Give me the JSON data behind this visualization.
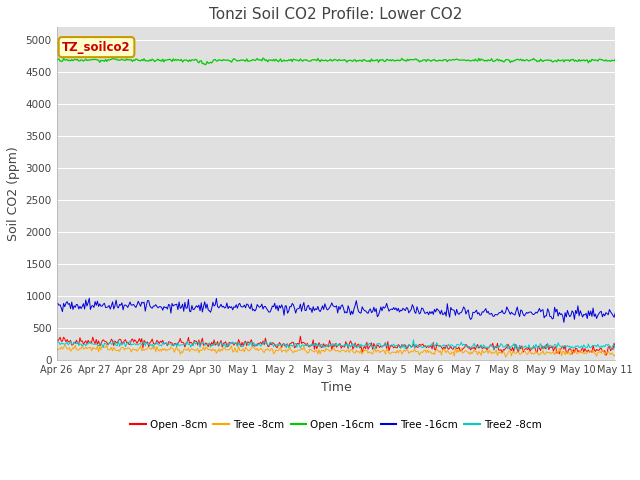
{
  "title": "Tonzi Soil CO2 Profile: Lower CO2",
  "xlabel": "Time",
  "ylabel": "Soil CO2 (ppm)",
  "annotation_text": "TZ_soilco2",
  "annotation_color": "#cc0000",
  "annotation_bg": "#ffffcc",
  "annotation_border": "#cc9900",
  "ylim": [
    0,
    5200
  ],
  "yticks": [
    0,
    500,
    1000,
    1500,
    2000,
    2500,
    3000,
    3500,
    4000,
    4500,
    5000
  ],
  "bg_color": "#e0e0e0",
  "fig_bg_color": "#ffffff",
  "n_points": 480,
  "x_start": 0,
  "x_end": 15,
  "xtick_labels": [
    "Apr 26",
    "Apr 27",
    "Apr 28",
    "Apr 29",
    "Apr 30",
    "May 1",
    "May 2",
    "May 3",
    "May 4",
    "May 5",
    "May 6",
    "May 7",
    "May 8",
    "May 9",
    "May 10",
    "May 11"
  ],
  "xtick_positions": [
    0,
    1,
    2,
    3,
    4,
    5,
    6,
    7,
    8,
    9,
    10,
    11,
    12,
    13,
    14,
    15
  ],
  "legend_items": [
    {
      "label": "Open -8cm",
      "color": "#ff0000"
    },
    {
      "label": "Tree -8cm",
      "color": "#ffa500"
    },
    {
      "label": "Open -16cm",
      "color": "#00cc00"
    },
    {
      "label": "Tree -16cm",
      "color": "#0000dd"
    },
    {
      "label": "Tree2 -8cm",
      "color": "#00cccc"
    }
  ],
  "open_8cm_color": "#ff0000",
  "tree_8cm_color": "#ffa500",
  "open_16cm_color": "#00cc00",
  "tree_16cm_color": "#0000dd",
  "tree2_8cm_color": "#00cccc",
  "open_8cm_label": "Open -8cm",
  "tree_8cm_label": "Tree -8cm",
  "open_16cm_label": "Open -16cm",
  "tree_16cm_label": "Tree -16cm",
  "tree2_8cm_label": "Tree2 -8cm"
}
